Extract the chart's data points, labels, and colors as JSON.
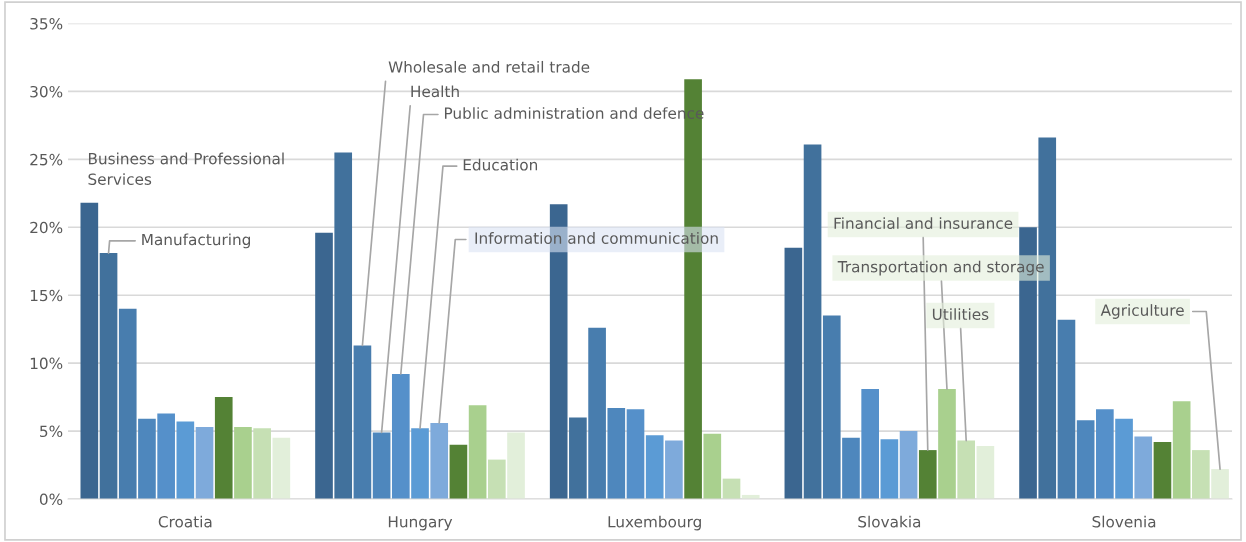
{
  "chart_data": {
    "type": "bar",
    "categories": [
      "Croatia",
      "Hungary",
      "Luxembourg",
      "Slovakia",
      "Slovenia"
    ],
    "series": [
      {
        "name": "Business and Professional Services",
        "color": "#3b6690",
        "values": [
          21.8,
          19.6,
          21.7,
          18.5,
          20.0
        ]
      },
      {
        "name": "Manufacturing",
        "color": "#41719c",
        "values": [
          18.1,
          25.5,
          6.0,
          26.1,
          26.6
        ]
      },
      {
        "name": "Wholesale and retail trade",
        "color": "#487dae",
        "values": [
          14.0,
          11.3,
          12.6,
          13.5,
          13.2
        ]
      },
      {
        "name": "Health",
        "color": "#4e87bd",
        "values": [
          5.9,
          4.9,
          6.7,
          4.5,
          5.8
        ]
      },
      {
        "name": "Public administration and defence",
        "color": "#5590ca",
        "values": [
          6.3,
          9.2,
          6.6,
          8.1,
          6.6
        ]
      },
      {
        "name": "Education",
        "color": "#5b9bd5",
        "values": [
          5.7,
          5.2,
          4.7,
          4.4,
          5.9
        ]
      },
      {
        "name": "Information and communication",
        "color": "#7eaadb",
        "values": [
          5.3,
          5.6,
          4.3,
          5.0,
          4.6
        ]
      },
      {
        "name": "Financial and insurance",
        "color": "#548235",
        "values": [
          7.5,
          4.0,
          30.9,
          3.6,
          4.2
        ]
      },
      {
        "name": "Transportation and storage",
        "color": "#a9d08e",
        "values": [
          5.3,
          6.9,
          4.8,
          8.1,
          7.2
        ]
      },
      {
        "name": "Utilities",
        "color": "#c6e0b4",
        "values": [
          5.2,
          2.9,
          1.5,
          4.3,
          3.6
        ]
      },
      {
        "name": "Agriculture",
        "color": "#e2efda",
        "values": [
          4.5,
          4.9,
          0.3,
          3.9,
          2.2
        ]
      }
    ],
    "ylim": [
      0,
      35
    ],
    "yticks": [
      {
        "value": 0,
        "label": "0%"
      },
      {
        "value": 5,
        "label": "5%"
      },
      {
        "value": 10,
        "label": "10%"
      },
      {
        "value": 15,
        "label": "15%"
      },
      {
        "value": 20,
        "label": "20%"
      },
      {
        "value": 25,
        "label": "25%"
      },
      {
        "value": 30,
        "label": "30%"
      },
      {
        "value": 35,
        "label": "35%"
      }
    ],
    "grid": "y"
  }
}
